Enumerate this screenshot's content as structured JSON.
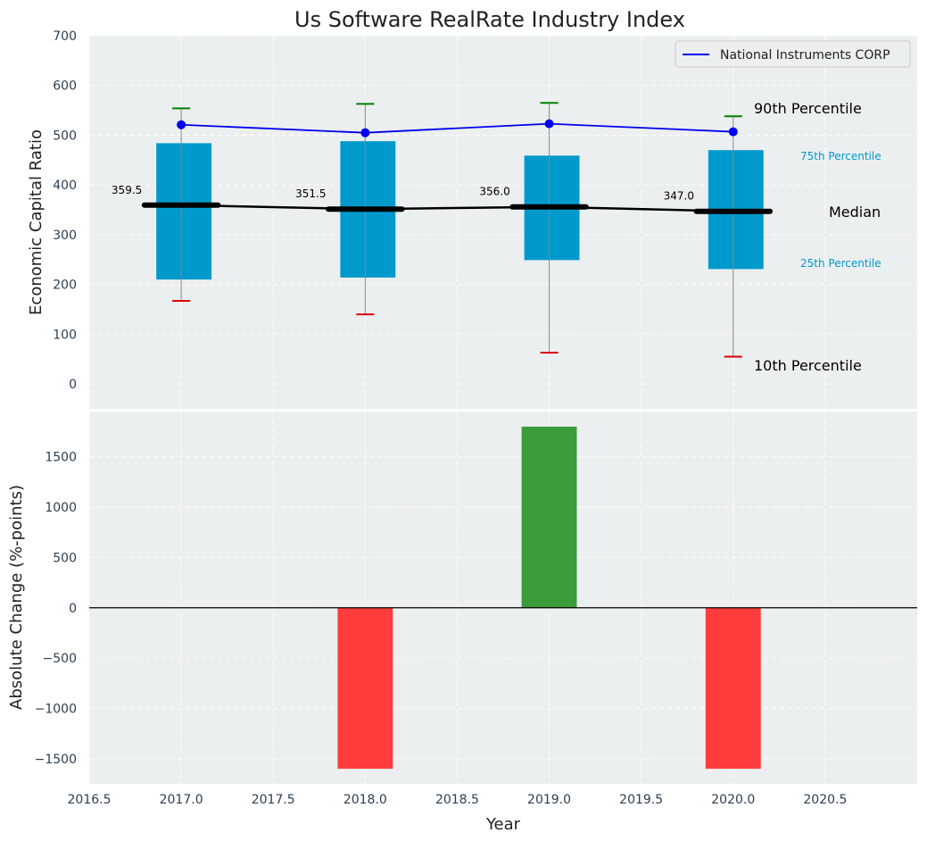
{
  "chart_data": [
    {
      "type": "box",
      "title": "Us Software RealRate Industry Index",
      "ylabel": "Economic Capital Ratio",
      "xlim": [
        2016.5,
        2021.0
      ],
      "ylim": [
        -50,
        700
      ],
      "yticks": [
        0,
        100,
        200,
        300,
        400,
        500,
        600,
        700
      ],
      "grid": true,
      "colors": {
        "box": "#0099cc",
        "whisker_high": "#008000",
        "whisker_low": "#dd0000",
        "median": "#000000",
        "company": "#0000ee"
      },
      "boxes": [
        {
          "x": 2017,
          "p10": 167,
          "p25": 210,
          "median": 359.5,
          "p75": 484,
          "p90": 554,
          "median_label": "359.5"
        },
        {
          "x": 2018,
          "p10": 140,
          "p25": 214,
          "median": 351.5,
          "p75": 488,
          "p90": 563,
          "median_label": "351.5"
        },
        {
          "x": 2019,
          "p10": 63,
          "p25": 249,
          "median": 356.0,
          "p75": 459,
          "p90": 565,
          "median_label": "356.0"
        },
        {
          "x": 2020,
          "p10": 55,
          "p25": 231,
          "median": 347.0,
          "p75": 470,
          "p90": 538,
          "median_label": "347.0"
        }
      ],
      "series": [
        {
          "name": "National Instruments CORP",
          "x": [
            2017,
            2018,
            2019,
            2020
          ],
          "values": [
            521,
            505,
            523,
            507
          ]
        }
      ],
      "legend": {
        "position": "top-right",
        "entries": [
          "National Instruments CORP"
        ]
      },
      "annotations": {
        "p90": "90th Percentile",
        "p75": "75th Percentile",
        "median": "Median",
        "p25": "25th Percentile",
        "p10": "10th Percentile"
      }
    },
    {
      "type": "bar",
      "xlabel": "Year",
      "ylabel": "Absolute Change (%-points)",
      "xlim": [
        2016.5,
        2021.0
      ],
      "ylim": [
        -1750,
        1950
      ],
      "xticks": [
        "2016.5",
        "2017.0",
        "2017.5",
        "2018.0",
        "2018.5",
        "2019.0",
        "2019.5",
        "2020.0",
        "2020.5"
      ],
      "yticks": [
        -1500,
        -1000,
        -500,
        0,
        500,
        1000,
        1500
      ],
      "grid": true,
      "x": [
        2018,
        2019,
        2020
      ],
      "values": [
        -1600,
        1800,
        -1600
      ],
      "colors": {
        "positive": "#3a9c3a",
        "negative": "#ff3c3c"
      }
    }
  ]
}
